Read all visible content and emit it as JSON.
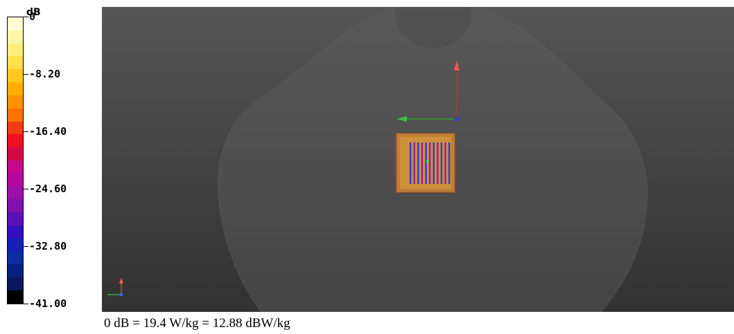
{
  "legend": {
    "unit": "dB",
    "ticks": [
      "0",
      "-8.20",
      "-16.40",
      "-24.60",
      "-32.80",
      "-41.00"
    ],
    "colors": [
      "#fffbd0",
      "#fff5a8",
      "#ffee7a",
      "#ffe04a",
      "#ffc81e",
      "#ffae00",
      "#ff9200",
      "#ff7200",
      "#ee3c10",
      "#ee1020",
      "#d80848",
      "#c8088c",
      "#b4089e",
      "#9c10a8",
      "#8010b0",
      "#5a10b8",
      "#3010c0",
      "#1420b8",
      "#0c2ca0",
      "#0a2080",
      "#0a1860",
      "#000000"
    ]
  },
  "caption": "0 dB = 19.4 W/kg = 12.88 dBW/kg"
}
